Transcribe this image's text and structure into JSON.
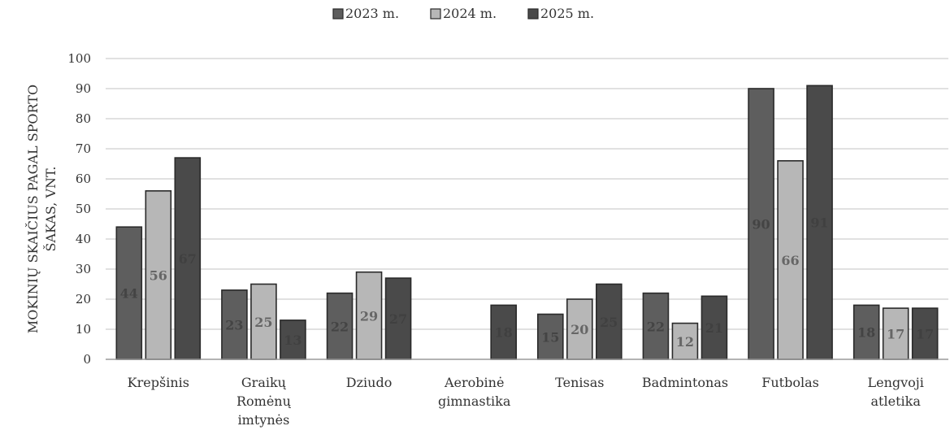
{
  "chart_data": {
    "type": "bar",
    "title": "",
    "xlabel": "",
    "ylabel_lines": [
      "MOKINIŲ SKAIČIUS PAGAL SPORTO",
      "ŠAKAS, VNT."
    ],
    "ylim": [
      0,
      100
    ],
    "yticks": [
      0,
      10,
      20,
      30,
      40,
      50,
      60,
      70,
      80,
      90,
      100
    ],
    "grid": true,
    "legend_position": "top-center",
    "categories": [
      [
        "Krepšinis"
      ],
      [
        "Graikų",
        "Romėnų",
        "imtynės"
      ],
      [
        "Dziudo"
      ],
      [
        "Aerobinė",
        "gimnastika"
      ],
      [
        "Tenisas"
      ],
      [
        "Badmintonas"
      ],
      [
        "Futbolas"
      ],
      [
        "Lengvoji",
        "atletika"
      ]
    ],
    "series": [
      {
        "name": "2023 m.",
        "color": "#5e5e5e",
        "label_color": "#444444",
        "values": [
          44,
          23,
          22,
          null,
          15,
          22,
          90,
          18
        ]
      },
      {
        "name": "2024 m.",
        "color": "#b7b7b7",
        "label_color": "#666666",
        "values": [
          56,
          25,
          29,
          null,
          20,
          12,
          66,
          17
        ]
      },
      {
        "name": "2025 m.",
        "color": "#4a4a4a",
        "label_color": "#404040",
        "values": [
          67,
          13,
          27,
          18,
          25,
          21,
          91,
          17
        ]
      }
    ]
  }
}
